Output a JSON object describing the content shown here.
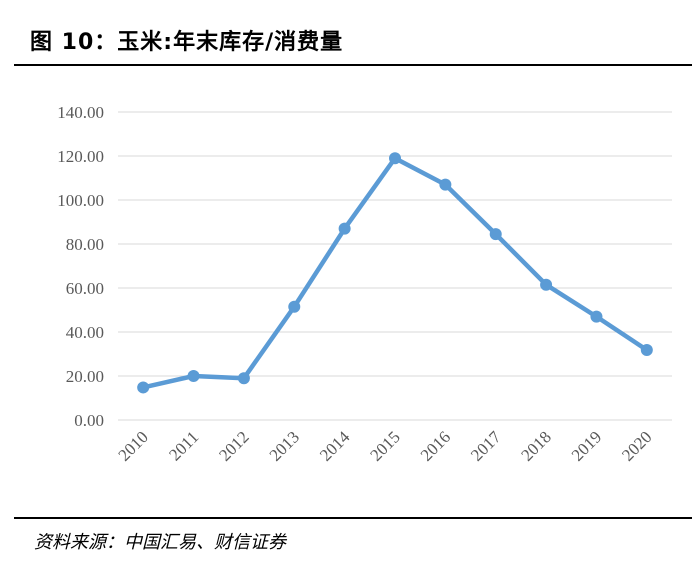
{
  "header": {
    "title": "图 10：玉米:年末库存/消费量"
  },
  "footer": {
    "source": "资料来源：中国汇易、财信证券"
  },
  "chart_data": {
    "type": "line",
    "title": "",
    "xlabel": "",
    "ylabel": "",
    "categories": [
      "2010",
      "2011",
      "2012",
      "2013",
      "2014",
      "2015",
      "2016",
      "2017",
      "2018",
      "2019",
      "2020"
    ],
    "series": [
      {
        "values": [
          14.8,
          20.0,
          19.0,
          51.5,
          87.0,
          119.0,
          107.0,
          84.5,
          61.5,
          47.0,
          31.8
        ],
        "color": "#5b9bd5"
      }
    ],
    "ylim": [
      0,
      140
    ],
    "yticks": [
      "0.00",
      "20.00",
      "40.00",
      "60.00",
      "80.00",
      "100.00",
      "120.00",
      "140.00"
    ],
    "grid": true,
    "legend": "none"
  }
}
